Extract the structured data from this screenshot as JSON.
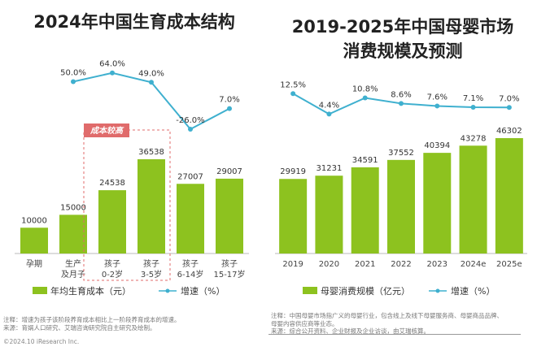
{
  "colors": {
    "bar": "#8dc21f",
    "line": "#3fb0cf",
    "highlight": "#e06b6b",
    "axis": "#bbbbbb"
  },
  "chart_data": [
    {
      "type": "bar+line",
      "title": "2024年中国生育成本结构",
      "categories": [
        "孕期",
        "生产\n及月子",
        "孩子\n0-2岁",
        "孩子\n3-5岁",
        "孩子\n6-14岁",
        "孩子\n15-17岁"
      ],
      "series": [
        {
          "name": "年均生育成本（元）",
          "type": "bar",
          "values": [
            10000,
            15000,
            24538,
            36538,
            27007,
            29007
          ]
        },
        {
          "name": "增速（%）",
          "type": "line",
          "values": [
            null,
            50.0,
            64.0,
            49.0,
            -26.0,
            7.0
          ]
        }
      ],
      "annotation": "成本较高",
      "legend": "bottom"
    },
    {
      "type": "bar+line",
      "title": "2019-2025年中国母婴市场\n消费规模及预测",
      "title_lines": [
        "2019-2025年中国母婴市场",
        "消费规模及预测"
      ],
      "categories": [
        "2019",
        "2020",
        "2021",
        "2022",
        "2023",
        "2024e",
        "2025e"
      ],
      "series": [
        {
          "name": "母婴消费规模（亿元）",
          "type": "bar",
          "values": [
            29919,
            31231,
            34591,
            37552,
            40394,
            43278,
            46302
          ]
        },
        {
          "name": "增速（%）",
          "type": "line",
          "values": [
            12.5,
            4.4,
            10.8,
            8.6,
            7.6,
            7.1,
            7.0
          ]
        }
      ],
      "legend": "bottom"
    }
  ],
  "notes": {
    "left": [
      "注释：增速为孩子该阶段养育成本相比上一阶段养育成本的增速。",
      "来源：育娲人口研究、艾瑞咨询研究院自主研究及绘制。"
    ],
    "right": [
      "注释：中国母婴市场指广义的母婴行业，包含线上及线下母婴服务商、母婴商品品牌、",
      "母婴内容供应商等业态。",
      "来源：综合公开资料、企业财报及企业访谈，由艾瑞核算。"
    ],
    "copyright": "©2024.10 iResearch Inc."
  }
}
